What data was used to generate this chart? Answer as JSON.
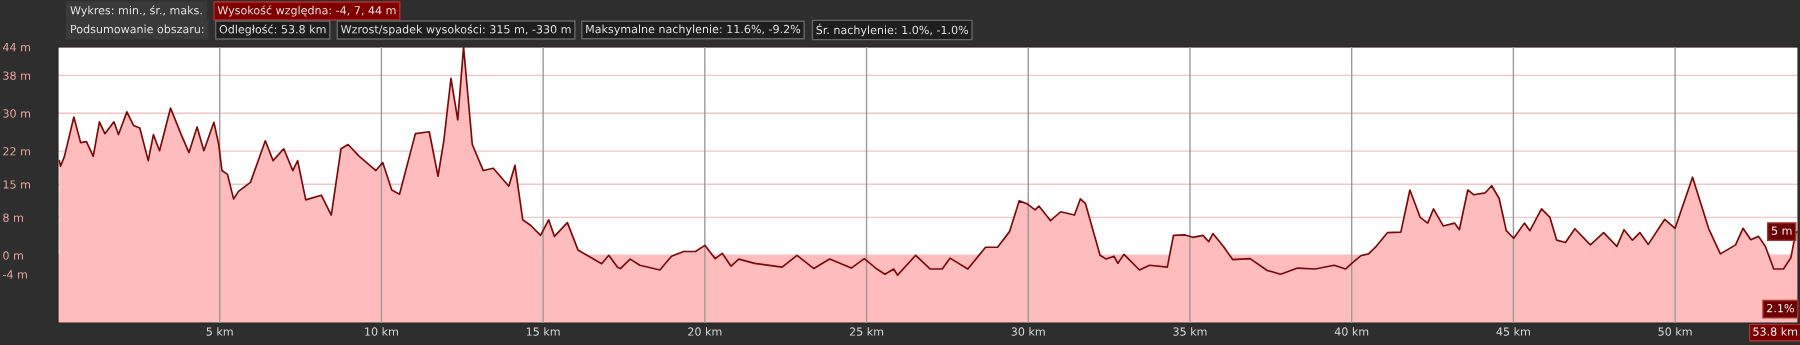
{
  "chart_data": {
    "type": "area",
    "annotations": [
      "Wykres: min., śr., maks.",
      "Wysokość względna: -4, 7, 44 m",
      "Podsumowanie obszaru:",
      "Odległość: 53.8 km",
      "Wzrost/spadek wysokości: 315 m, -330 m",
      "Maksymalne nachylenie: 11.6%, -9.2%",
      "Śr. nachylenie: 1.0%, -1.0%",
      {
        "text": "5 m",
        "x": 53.8,
        "y": 5
      },
      "2.1%"
    ],
    "series": [
      {
        "color": "#7a0a0a",
        "x": [
          0.04,
          0.08,
          0.2,
          0.49,
          0.7,
          0.88,
          1.09,
          1.28,
          1.45,
          1.73,
          1.87,
          2.13,
          2.34,
          2.53,
          2.79,
          2.95,
          3.14,
          3.48,
          3.81,
          4.05,
          4.3,
          4.51,
          4.82,
          4.97,
          5.07,
          5.24,
          5.43,
          5.58,
          5.95,
          6.41,
          6.65,
          6.98,
          7.26,
          7.41,
          7.66,
          8.14,
          8.45,
          8.75,
          8.97,
          9.3,
          9.83,
          10.04,
          10.32,
          10.56,
          11.05,
          11.48,
          11.75,
          11.93,
          12.15,
          12.36,
          12.54,
          12.81,
          13.15,
          13.46,
          13.94,
          14.13,
          14.37,
          14.62,
          14.92,
          15.17,
          15.35,
          15.75,
          16.08,
          16.81,
          17.03,
          17.3,
          17.39,
          17.69,
          17.99,
          18.61,
          18.97,
          19.34,
          19.71,
          20.0,
          20.32,
          20.54,
          20.81,
          21.05,
          21.54,
          22.39,
          22.85,
          23.37,
          23.86,
          24.53,
          24.93,
          25.32,
          25.57,
          25.84,
          25.96,
          26.52,
          26.97,
          27.34,
          27.58,
          28.13,
          28.5,
          28.68,
          29.05,
          29.42,
          29.72,
          29.96,
          30.21,
          30.33,
          30.69,
          31.0,
          31.43,
          31.61,
          31.77,
          32.22,
          32.41,
          32.65,
          32.77,
          32.96,
          33.44,
          33.75,
          34.3,
          34.49,
          34.85,
          35.09,
          35.4,
          35.58,
          35.71,
          36.03,
          36.32,
          36.86,
          37.39,
          37.8,
          38.33,
          38.87,
          39.46,
          39.81,
          40.0,
          40.28,
          40.52,
          40.76,
          41.11,
          41.52,
          41.8,
          42.12,
          42.35,
          42.53,
          42.83,
          43.18,
          43.33,
          43.59,
          43.77,
          44.13,
          44.33,
          44.56,
          44.78,
          45.01,
          45.34,
          45.51,
          45.87,
          46.13,
          46.34,
          46.61,
          46.9,
          47.38,
          47.79,
          48.2,
          48.42,
          48.68,
          48.91,
          49.17,
          49.68,
          50.0,
          50.54,
          51.04,
          51.4,
          51.87,
          52.1,
          52.34,
          52.58,
          52.79,
          53.05,
          53.35,
          53.58,
          53.73,
          53.8
        ],
        "values": [
          20.0,
          18.8,
          20.9,
          29.2,
          23.8,
          24.0,
          20.9,
          28.2,
          25.7,
          28.2,
          25.5,
          30.3,
          27.4,
          26.9,
          20.0,
          25.5,
          22.1,
          31.1,
          25.5,
          21.7,
          27.1,
          22.1,
          28.1,
          23.4,
          17.9,
          17.1,
          11.9,
          13.5,
          15.4,
          24.2,
          20.0,
          22.5,
          17.9,
          20.0,
          11.7,
          12.7,
          8.5,
          22.5,
          23.4,
          21.0,
          17.9,
          19.6,
          13.8,
          12.9,
          25.7,
          26.1,
          16.7,
          24.2,
          37.4,
          28.6,
          44,
          23.4,
          17.9,
          18.4,
          14.6,
          19.0,
          7.5,
          6.3,
          4.2,
          7.5,
          4.0,
          6.9,
          1.1,
          -1.8,
          0.0,
          -2.5,
          -2.8,
          -0.8,
          -2.1,
          -3.1,
          -0.2,
          0.8,
          0.8,
          2.1,
          -0.7,
          0.4,
          -2.3,
          -0.8,
          -1.7,
          -2.5,
          0.0,
          -2.8,
          -0.8,
          -2.7,
          -0.7,
          -2.9,
          -4.0,
          -2.9,
          -4.2,
          0.0,
          -2.9,
          -2.9,
          -0.6,
          -2.9,
          0.2,
          1.7,
          1.7,
          5.0,
          11.5,
          10.9,
          9.6,
          10.4,
          7.3,
          9.2,
          8.5,
          11.9,
          10.9,
          0.0,
          -0.8,
          -0.2,
          -1.7,
          0.2,
          -3.1,
          -2.1,
          -2.5,
          4.2,
          4.3,
          3.8,
          4.2,
          2.9,
          4.6,
          1.9,
          -0.9,
          -0.7,
          -3.2,
          -4.0,
          -2.7,
          -2.9,
          -2.1,
          -2.9,
          -1.7,
          -0.1,
          0.3,
          1.9,
          4.8,
          4.9,
          13.8,
          8.0,
          6.8,
          9.8,
          6.2,
          6.8,
          5.4,
          13.8,
          12.8,
          13.2,
          14.7,
          12.0,
          5.2,
          3.6,
          6.8,
          5.2,
          9.8,
          8.0,
          3.2,
          2.7,
          5.6,
          2.2,
          4.8,
          1.9,
          5.4,
          3.2,
          4.8,
          2.3,
          7.6,
          5.7,
          16.5,
          5.6,
          0.3,
          2.2,
          5.7,
          3.3,
          4.0,
          1.9,
          -2.9,
          -2.9,
          -0.5,
          4.8,
          5
        ]
      }
    ],
    "xlim": [
      0,
      53.8
    ],
    "xticks": [
      {
        "value": 5,
        "label": "5 km"
      },
      {
        "value": 10,
        "label": "10 km"
      },
      {
        "value": 15,
        "label": "15 km"
      },
      {
        "value": 20,
        "label": "20 km"
      },
      {
        "value": 25,
        "label": "25 km"
      },
      {
        "value": 30,
        "label": "30 km"
      },
      {
        "value": 35,
        "label": "35 km"
      },
      {
        "value": 40,
        "label": "40 km"
      },
      {
        "value": 45,
        "label": "45 km"
      },
      {
        "value": 50,
        "label": "50 km"
      },
      {
        "value": 53.8,
        "label": "53.8 km"
      }
    ],
    "ylim": [
      -14.3,
      44
    ],
    "yticks": [
      {
        "value": -4,
        "label": "-4 m"
      },
      {
        "value": 0,
        "label": "0 m"
      },
      {
        "value": 8,
        "label": "8 m"
      },
      {
        "value": 15,
        "label": "15 m"
      },
      {
        "value": 22,
        "label": "22 m"
      },
      {
        "value": 30,
        "label": "30 m"
      },
      {
        "value": 38,
        "label": "38 m"
      },
      {
        "value": 44,
        "label": "44 m"
      }
    ],
    "bands": [
      {
        "axis": "y",
        "from": -14.3,
        "to": 0,
        "color": "#ffbcbc"
      }
    ],
    "grid": true
  }
}
